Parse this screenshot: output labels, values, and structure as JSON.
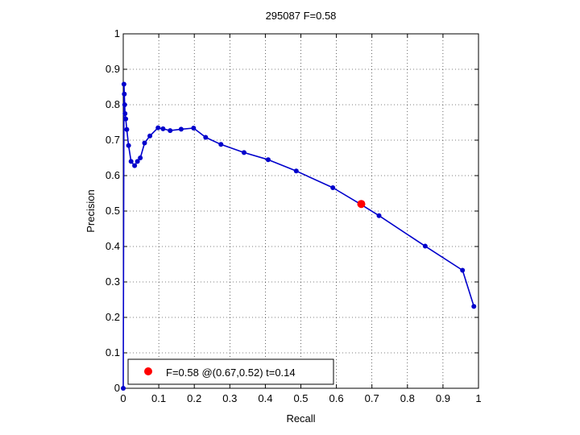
{
  "chart_data": {
    "type": "line",
    "title": "295087 F=0.58",
    "xlabel": "Recall",
    "ylabel": "Precision",
    "xlim": [
      0,
      1
    ],
    "ylim": [
      0,
      1
    ],
    "grid": true,
    "xticks": [
      0,
      0.1,
      0.2,
      0.3,
      0.4,
      0.5,
      0.6,
      0.7,
      0.8,
      0.9,
      1
    ],
    "yticks": [
      0,
      0.1,
      0.2,
      0.3,
      0.4,
      0.5,
      0.6,
      0.7,
      0.8,
      0.9,
      1
    ],
    "xtick_labels": [
      "0",
      "0.1",
      "0.2",
      "0.3",
      "0.4",
      "0.5",
      "0.6",
      "0.7",
      "0.8",
      "0.9",
      "1"
    ],
    "ytick_labels": [
      "0",
      "0.1",
      "0.2",
      "0.3",
      "0.4",
      "0.5",
      "0.6",
      "0.7",
      "0.8",
      "0.9",
      "1"
    ],
    "series": [
      {
        "color": "#0000cc",
        "marker": "dot",
        "points": [
          [
            0.0,
            0.0
          ],
          [
            0.002,
            0.858
          ],
          [
            0.003,
            0.83
          ],
          [
            0.004,
            0.8
          ],
          [
            0.005,
            0.775
          ],
          [
            0.007,
            0.76
          ],
          [
            0.01,
            0.73
          ],
          [
            0.015,
            0.685
          ],
          [
            0.022,
            0.64
          ],
          [
            0.032,
            0.628
          ],
          [
            0.04,
            0.64
          ],
          [
            0.048,
            0.65
          ],
          [
            0.06,
            0.692
          ],
          [
            0.075,
            0.712
          ],
          [
            0.098,
            0.735
          ],
          [
            0.112,
            0.732
          ],
          [
            0.132,
            0.727
          ],
          [
            0.163,
            0.731
          ],
          [
            0.198,
            0.734
          ],
          [
            0.232,
            0.708
          ],
          [
            0.275,
            0.688
          ],
          [
            0.34,
            0.665
          ],
          [
            0.408,
            0.645
          ],
          [
            0.487,
            0.613
          ],
          [
            0.59,
            0.566
          ],
          [
            0.667,
            0.52
          ],
          [
            0.72,
            0.487
          ],
          [
            0.85,
            0.401
          ],
          [
            0.955,
            0.333
          ],
          [
            0.987,
            0.231
          ]
        ]
      }
    ],
    "best_point": {
      "x": 0.67,
      "y": 0.52,
      "color": "#ff0000"
    },
    "legend": {
      "position": "bottom-left",
      "entries": [
        {
          "label": "F=0.58 @(0.67,0.52) t=0.14",
          "color": "#ff0000"
        }
      ]
    }
  }
}
